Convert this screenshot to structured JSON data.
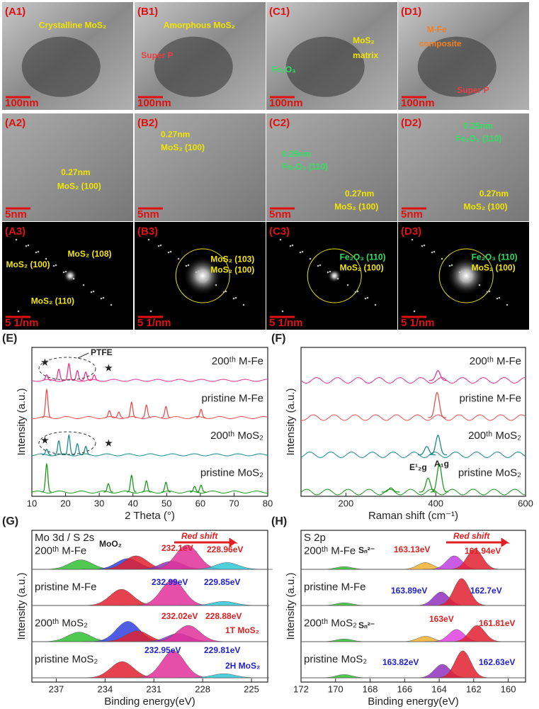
{
  "micrographs": [
    {
      "label": "(A1)",
      "scale": "100nm",
      "notes": [
        {
          "text": "Crystalline MoS₂",
          "color": "#f2e600"
        }
      ]
    },
    {
      "label": "(B1)",
      "scale": "100nm",
      "notes": [
        {
          "text": "Amorphous MoS₂",
          "color": "#f2e600"
        },
        {
          "text": "Super P",
          "color": "#e84040"
        }
      ]
    },
    {
      "label": "(C1)",
      "scale": "100nm",
      "notes": [
        {
          "text": "MoS₂",
          "color": "#f2e600"
        },
        {
          "text": "matrix",
          "color": "#f2e600"
        },
        {
          "text": "Fe₂O₃",
          "color": "#30e060"
        }
      ]
    },
    {
      "label": "(D1)",
      "scale": "100nm",
      "notes": [
        {
          "text": "M-Fe",
          "color": "#f08020"
        },
        {
          "text": "composite",
          "color": "#f08020"
        },
        {
          "text": "Super P",
          "color": "#e84040"
        }
      ]
    },
    {
      "label": "(A2)",
      "scale": "5nm",
      "notes": [
        {
          "text": "0.27nm",
          "color": "#f2e600"
        },
        {
          "text": "MoS₂ (100)",
          "color": "#f2e600"
        }
      ]
    },
    {
      "label": "(B2)",
      "scale": "5nm",
      "notes": [
        {
          "text": "0.27nm",
          "color": "#f2e600"
        },
        {
          "text": "MoS₂ (100)",
          "color": "#f2e600"
        }
      ]
    },
    {
      "label": "(C2)",
      "scale": "5nm",
      "notes": [
        {
          "text": "0.25nm",
          "color": "#30e060"
        },
        {
          "text": "Fe₂O₃ (110)",
          "color": "#30e060"
        },
        {
          "text": "0.27nm",
          "color": "#f2e600"
        },
        {
          "text": "MoS₂ (100)",
          "color": "#f2e600"
        }
      ]
    },
    {
      "label": "(D2)",
      "scale": "5nm",
      "notes": [
        {
          "text": "0.25nm",
          "color": "#30e060"
        },
        {
          "text": "Fe₂O₃ (110)",
          "color": "#30e060"
        },
        {
          "text": "0.27nm",
          "color": "#f2e600"
        },
        {
          "text": "MoS₂ (100)",
          "color": "#f2e600"
        }
      ]
    },
    {
      "label": "(A3)",
      "scale": "5 1/nm",
      "notes": [
        {
          "text": "MoS₂ (100)",
          "color": "#f2e600"
        },
        {
          "text": "MoS₂ (108)",
          "color": "#f2e600"
        },
        {
          "text": "MoS₂ (110)",
          "color": "#f2e600"
        }
      ]
    },
    {
      "label": "(B3)",
      "scale": "5 1/nm",
      "notes": [
        {
          "text": "MoS₂ (103)",
          "color": "#f2e600"
        },
        {
          "text": "MoS₂ (100)",
          "color": "#f2e600"
        }
      ]
    },
    {
      "label": "(C3)",
      "scale": "5 1/nm",
      "notes": [
        {
          "text": "Fe₂O₃ (110)",
          "color": "#30e060"
        },
        {
          "text": "MoS₂ (100)",
          "color": "#f2e600"
        }
      ]
    },
    {
      "label": "(D3)",
      "scale": "5 1/nm",
      "notes": [
        {
          "text": "Fe₂O₃ (110)",
          "color": "#30e060"
        },
        {
          "text": "MoS₂ (100)",
          "color": "#f2e600"
        }
      ]
    }
  ],
  "chart_data": [
    {
      "type": "line",
      "panel": "(E)",
      "xlabel": "2 Theta (°)",
      "ylabel": "Intensity (a.u.)",
      "xlim": [
        10,
        80
      ],
      "xticks": [
        10,
        20,
        30,
        40,
        50,
        60,
        70,
        80
      ],
      "annotations": [
        {
          "text": "PTFE",
          "color": "#222"
        },
        {
          "text": "★",
          "color": "#222"
        },
        {
          "text": "★",
          "color": "#222"
        },
        {
          "text": "★",
          "color": "#222"
        },
        {
          "text": "★",
          "color": "#222"
        }
      ],
      "series": [
        {
          "name": "200ᵗʰ M-Fe",
          "color": "#e8348a",
          "peaks": [
            14.4,
            18,
            21,
            23.5,
            26,
            28.5
          ],
          "heights": [
            0.2,
            0.4,
            0.6,
            0.35,
            0.3,
            0.2
          ]
        },
        {
          "name": "pristine M-Fe",
          "color": "#e85050",
          "peaks": [
            14.4,
            33,
            35.8,
            39.6,
            44,
            49.8,
            60.2
          ],
          "heights": [
            1,
            0.25,
            0.2,
            0.55,
            0.45,
            0.4,
            0.3
          ]
        },
        {
          "name": "200ᵗʰ MoS₂",
          "color": "#1a8a8a",
          "peaks": [
            14.4,
            18,
            21,
            23.5,
            26
          ],
          "heights": [
            0.2,
            0.5,
            0.7,
            0.4,
            0.3
          ]
        },
        {
          "name": "pristine MoS₂",
          "color": "#1a9a1a",
          "peaks": [
            14.4,
            32.7,
            39.6,
            44,
            49.8,
            58.3,
            60.2
          ],
          "heights": [
            1,
            0.3,
            0.6,
            0.4,
            0.35,
            0.2,
            0.25
          ]
        }
      ]
    },
    {
      "type": "line",
      "panel": "(F)",
      "xlabel": "Raman shift (cm⁻¹)",
      "ylabel": "Intensity (a.u.)",
      "xlim": [
        100,
        600
      ],
      "xticks": [
        200,
        400,
        600
      ],
      "annotations": [
        {
          "text": "E¹₂g",
          "color": "#222"
        },
        {
          "text": "A₁g",
          "color": "#222"
        }
      ],
      "series": [
        {
          "name": "200ᵗʰ M-Fe",
          "color": "#e8348a",
          "peaks": [
            405
          ],
          "heights": [
            0.35
          ]
        },
        {
          "name": "pristine M-Fe",
          "color": "#e85050",
          "peaks": [
            403
          ],
          "heights": [
            0.9
          ]
        },
        {
          "name": "200ᵗʰ MoS₂",
          "color": "#1a8a8a",
          "peaks": [
            380,
            405
          ],
          "heights": [
            0.3,
            0.7
          ]
        },
        {
          "name": "pristine MoS₂",
          "color": "#1a9a1a",
          "peaks": [
            300,
            383,
            408
          ],
          "heights": [
            0.15,
            0.5,
            1
          ]
        }
      ]
    },
    {
      "type": "xps",
      "panel": "(G)",
      "title": "Mo 3d / S 2s",
      "xlabel": "Binding energy(eV)",
      "ylabel": "Intensity (a.u.)",
      "xlim": [
        238.5,
        224
      ],
      "xticks": [
        237,
        234,
        231,
        228,
        225
      ],
      "annotations": [
        {
          "text": "MoO₂",
          "color": "#222"
        },
        {
          "text": "232.1eV",
          "color": "#e02020"
        },
        {
          "text": "228.96eV",
          "color": "#e02020"
        },
        {
          "text": "232.99eV",
          "color": "#2020d0"
        },
        {
          "text": "229.85eV",
          "color": "#2020d0"
        },
        {
          "text": "232.02eV",
          "color": "#e02020"
        },
        {
          "text": "228.88eV",
          "color": "#e02020"
        },
        {
          "text": "1T MoS₂",
          "color": "#e02020"
        },
        {
          "text": "232.95eV",
          "color": "#2020d0"
        },
        {
          "text": "229.81eV",
          "color": "#2020d0"
        },
        {
          "text": "2H MoS₂",
          "color": "#2020d0"
        },
        {
          "text": "Red shift",
          "color": "#e02020"
        }
      ],
      "series": [
        {
          "name": "200ᵗʰ M-Fe",
          "peaks": [
            235.5,
            232.6,
            232.1,
            229.9,
            228.96,
            226.5
          ],
          "heights": [
            0.35,
            0.4,
            0.5,
            0.3,
            0.9,
            0.25
          ],
          "colors": [
            "#30c030",
            "#3040e0",
            "#e02030",
            "#9030c0",
            "#e0309a",
            "#30c8d8"
          ]
        },
        {
          "name": "pristine M-Fe",
          "peaks": [
            232.99,
            229.85,
            226.7
          ],
          "heights": [
            0.6,
            0.95,
            0.15
          ],
          "colors": [
            "#e02030",
            "#e0309a",
            "#30c8d8"
          ]
        },
        {
          "name": "200ᵗʰ MoS₂",
          "peaks": [
            235.6,
            232.6,
            232.02,
            229.5,
            228.88
          ],
          "heights": [
            0.35,
            0.75,
            0.4,
            0.3,
            0.6
          ],
          "colors": [
            "#30c030",
            "#3040e0",
            "#e02030",
            "#9030c0",
            "#e0309a"
          ]
        },
        {
          "name": "pristine MoS₂",
          "peaks": [
            232.95,
            229.81,
            226.7
          ],
          "heights": [
            0.6,
            1,
            0.15
          ],
          "colors": [
            "#e02030",
            "#e0309a",
            "#30c8d8"
          ]
        }
      ]
    },
    {
      "type": "xps",
      "panel": "(H)",
      "title": "S 2p",
      "xlabel": "Binding energy(eV)",
      "ylabel": "Intensity (a.u.)",
      "xlim": [
        172,
        159
      ],
      "xticks": [
        172,
        170,
        168,
        166,
        164,
        162,
        160
      ],
      "annotations": [
        {
          "text": "Sₙ²⁻",
          "color": "#222"
        },
        {
          "text": "163.13eV",
          "color": "#e02020"
        },
        {
          "text": "161.94eV",
          "color": "#e02020"
        },
        {
          "text": "163.89eV",
          "color": "#2020d0"
        },
        {
          "text": "162.7eV",
          "color": "#2020d0"
        },
        {
          "text": "Sₙ²⁻",
          "color": "#222"
        },
        {
          "text": "163eV",
          "color": "#e02020"
        },
        {
          "text": "161.81eV",
          "color": "#e02020"
        },
        {
          "text": "163.82eV",
          "color": "#2020d0"
        },
        {
          "text": "162.63eV",
          "color": "#2020d0"
        },
        {
          "text": "Red shift",
          "color": "#e02020"
        }
      ],
      "series": [
        {
          "name": "200ᵗʰ M-Fe",
          "peaks": [
            169.5,
            164.8,
            163.13,
            161.94
          ],
          "heights": [
            0.1,
            0.25,
            0.5,
            0.75
          ],
          "colors": [
            "#30c030",
            "#f0b030",
            "#c040e0",
            "#e02030"
          ]
        },
        {
          "name": "pristine M-Fe",
          "peaks": [
            169.5,
            163.89,
            162.7
          ],
          "heights": [
            0.1,
            0.5,
            1
          ],
          "colors": [
            "#30c030",
            "#9030c0",
            "#e02030"
          ]
        },
        {
          "name": "200ᵗʰ MoS₂",
          "peaks": [
            169.5,
            164.8,
            163,
            161.81
          ],
          "heights": [
            0.1,
            0.2,
            0.45,
            0.6
          ],
          "colors": [
            "#30c030",
            "#f0b030",
            "#e040e0",
            "#e02030"
          ]
        },
        {
          "name": "pristine MoS₂",
          "peaks": [
            169.5,
            163.82,
            162.63
          ],
          "heights": [
            0.12,
            0.5,
            1
          ],
          "colors": [
            "#30c030",
            "#9030c0",
            "#e02030"
          ]
        }
      ]
    }
  ]
}
